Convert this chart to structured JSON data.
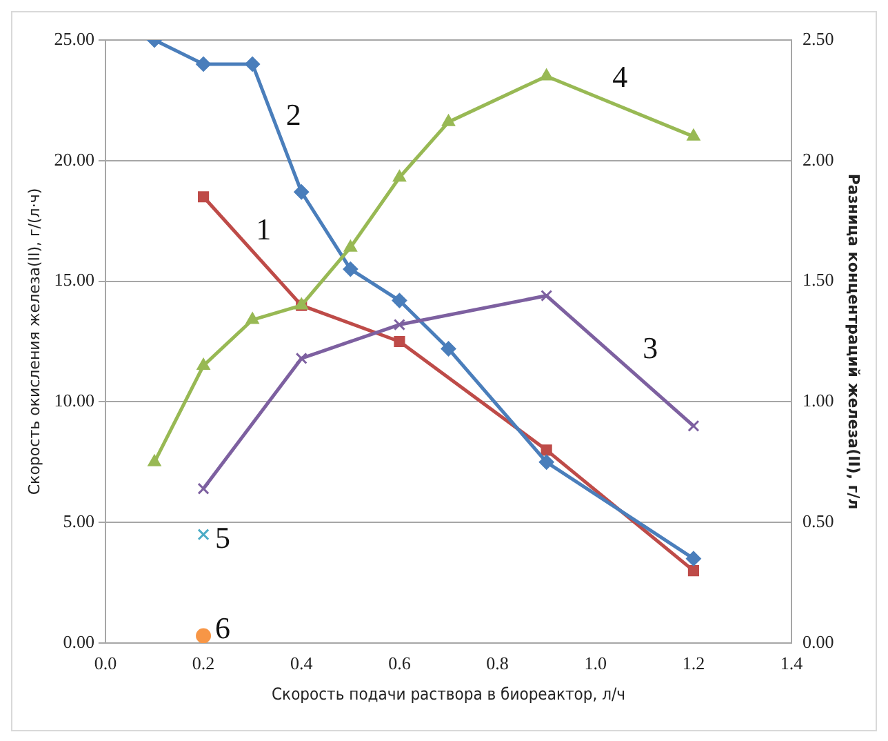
{
  "chart_data": {
    "type": "line",
    "xlabel": "Скорость подачи раствора в биореактор, л/ч",
    "ylabel": "Скорость окисления железа(II), г/(л·ч)",
    "y2label": "Разница концентраций железа(II), г/л",
    "xlim": [
      0,
      1.4
    ],
    "xticks": [
      {
        "value": 0,
        "label": "0.0"
      },
      {
        "value": 0.2,
        "label": "0.2"
      },
      {
        "value": 0.4,
        "label": "0.4"
      },
      {
        "value": 0.6,
        "label": "0.6"
      },
      {
        "value": 0.8,
        "label": "0.8"
      },
      {
        "value": 1.0,
        "label": "1.0"
      },
      {
        "value": 1.2,
        "label": "1.2"
      },
      {
        "value": 1.4,
        "label": "1.4"
      }
    ],
    "ylim": [
      0,
      25
    ],
    "yticks": [
      {
        "value": 0,
        "label": "0.00"
      },
      {
        "value": 5,
        "label": "5.00"
      },
      {
        "value": 10,
        "label": "10.00"
      },
      {
        "value": 15,
        "label": "15.00"
      },
      {
        "value": 20,
        "label": "20.00"
      },
      {
        "value": 25,
        "label": "25.00"
      }
    ],
    "y2lim": [
      0,
      2.5
    ],
    "y2ticks": [
      {
        "value": 0,
        "label": "0.00"
      },
      {
        "value": 0.5,
        "label": "0.50"
      },
      {
        "value": 1.0,
        "label": "1.00"
      },
      {
        "value": 1.5,
        "label": "1.50"
      },
      {
        "value": 2.0,
        "label": "2.00"
      },
      {
        "value": 2.5,
        "label": "2.50"
      }
    ],
    "grid": "y",
    "legend": false,
    "series": [
      {
        "name": "1",
        "color": "#be4b48",
        "marker": "square",
        "x": [
          0.2,
          0.4,
          0.6,
          0.9,
          1.2
        ],
        "values": [
          18.5,
          14.0,
          12.5,
          8.0,
          3.0
        ]
      },
      {
        "name": "2",
        "color": "#4a7ebb",
        "marker": "diamond",
        "x": [
          0.1,
          0.2,
          0.3,
          0.4,
          0.5,
          0.6,
          0.7,
          0.9,
          1.2
        ],
        "values": [
          25.0,
          24.0,
          24.0,
          18.7,
          15.5,
          14.2,
          12.2,
          7.5,
          3.5
        ]
      },
      {
        "name": "3",
        "color": "#7d60a0",
        "marker": "cross",
        "axis": "y2",
        "x": [
          0.2,
          0.4,
          0.6,
          0.9,
          1.2
        ],
        "values": [
          0.64,
          1.18,
          1.32,
          1.44,
          0.9
        ]
      },
      {
        "name": "4",
        "color": "#98b954",
        "marker": "triangle",
        "axis": "y2",
        "x": [
          0.1,
          0.2,
          0.3,
          0.4,
          0.5,
          0.6,
          0.7,
          0.9,
          1.2
        ],
        "values": [
          0.75,
          1.15,
          1.34,
          1.4,
          1.64,
          1.93,
          2.16,
          2.35,
          2.1
        ]
      },
      {
        "name": "5",
        "color": "#4bacc6",
        "marker": "cross",
        "x": [
          0.2
        ],
        "values": [
          4.5
        ]
      },
      {
        "name": "6",
        "color": "#f79646",
        "marker": "circle",
        "x": [
          0.2
        ],
        "values": [
          0.3
        ]
      }
    ]
  }
}
